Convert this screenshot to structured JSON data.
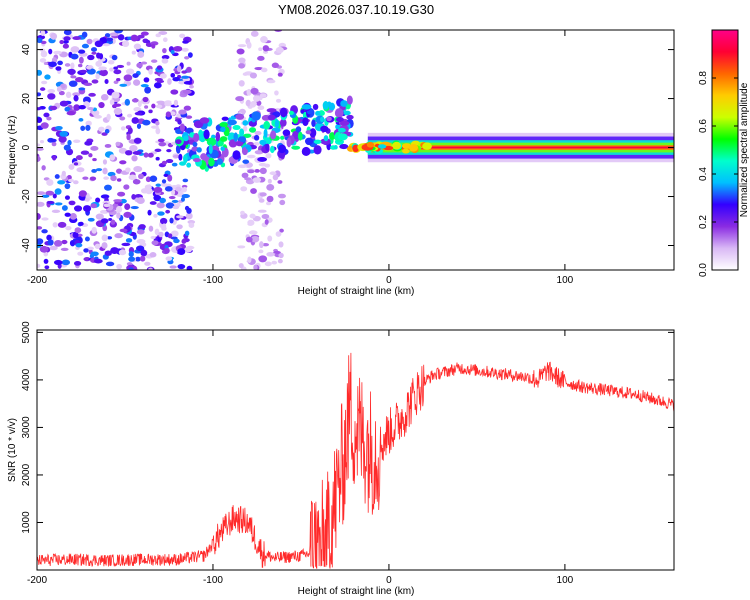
{
  "title": "YM08.2026.037.10.19.G30",
  "charts": [
    {
      "type": "heatmap",
      "name": "spectrogram",
      "xlabel": "Height of straight line (km)",
      "ylabel": "Frequency (Hz)",
      "xlim": [
        -200,
        162
      ],
      "ylim": [
        -50,
        48
      ],
      "xticks": [
        -200,
        -100,
        0,
        100
      ],
      "yticks": [
        -40,
        -20,
        0,
        20,
        40
      ],
      "colorbar": {
        "label": "Normalized spectral amplitude",
        "range": [
          0,
          1
        ],
        "ticks": [
          "0.0",
          "0.2",
          "0.4",
          "0.6",
          "0.8"
        ],
        "tick_values": [
          0.0,
          0.2,
          0.4,
          0.6,
          0.8
        ],
        "colormap": [
          "#ffffff",
          "#d9b8f5",
          "#8a2be2",
          "#3300ff",
          "#00bfff",
          "#00ffcc",
          "#00ff00",
          "#ccff00",
          "#ffcc00",
          "#ff6600",
          "#ff0033",
          "#ff0088"
        ]
      },
      "regions": [
        {
          "desc": "noise",
          "x": [
            -200,
            -112
          ],
          "freq": [
            -50,
            48
          ],
          "amp": 0.25
        },
        {
          "desc": "noise",
          "x": [
            -85,
            -60
          ],
          "freq": [
            -50,
            48
          ],
          "amp": 0.12
        },
        {
          "desc": "ionospheric",
          "x": [
            -120,
            -22
          ],
          "freq": [
            -10,
            18
          ],
          "amp": 0.35
        },
        {
          "desc": "carrier",
          "x": [
            -22,
            162
          ],
          "freq": [
            -3,
            3
          ],
          "amp": 0.85
        }
      ]
    },
    {
      "type": "line",
      "name": "snr",
      "xlabel": "Height of straight line (km)",
      "ylabel": "SNR (10 * v/v)",
      "xlim": [
        -200,
        162
      ],
      "ylim": [
        0,
        5050
      ],
      "xticks": [
        -200,
        -100,
        0,
        100
      ],
      "yticks": [
        1000,
        2000,
        3000,
        4000,
        5000
      ],
      "color": "#ff2a2a",
      "series": {
        "name": "SNR",
        "x": [
          -200,
          -180,
          -160,
          -140,
          -120,
          -105,
          -95,
          -88,
          -80,
          -72,
          -65,
          -50,
          -40,
          -35,
          -30,
          -25,
          -22,
          -20,
          -15,
          -10,
          -5,
          0,
          5,
          10,
          15,
          20,
          25,
          30,
          40,
          50,
          60,
          70,
          80,
          85,
          90,
          100,
          110,
          120,
          130,
          140,
          150,
          160,
          162
        ],
        "y": [
          200,
          220,
          200,
          220,
          220,
          300,
          800,
          1100,
          1000,
          350,
          250,
          300,
          400,
          700,
          1500,
          2500,
          3500,
          3000,
          2800,
          2500,
          2600,
          2900,
          3100,
          3350,
          3700,
          3950,
          4100,
          4150,
          4250,
          4200,
          4150,
          4100,
          4050,
          4000,
          4200,
          3950,
          3850,
          3800,
          3750,
          3700,
          3600,
          3500,
          3450
        ]
      }
    }
  ]
}
